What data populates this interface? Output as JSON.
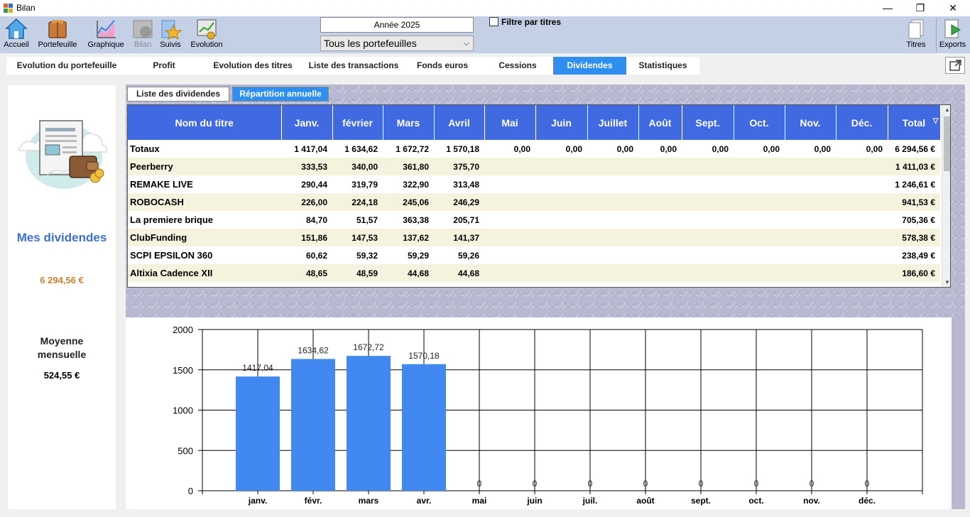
{
  "window": {
    "title": "Bilan",
    "minimize": "—",
    "maximize": "❐",
    "close": "✕"
  },
  "toolbar": {
    "buttons": [
      {
        "label": "Accueil",
        "icon": "home-icon",
        "enabled": true
      },
      {
        "label": "Portefeuille",
        "icon": "portfolio-icon",
        "enabled": true
      },
      {
        "label": "Graphique",
        "icon": "chart-icon",
        "enabled": true
      },
      {
        "label": "Bilan",
        "icon": "balance-icon",
        "enabled": false
      },
      {
        "label": "Suivis",
        "icon": "star-icon",
        "enabled": true
      },
      {
        "label": "Evolution",
        "icon": "evolution-icon",
        "enabled": true
      }
    ],
    "right_buttons": [
      {
        "label": "Titres",
        "icon": "documents-icon"
      },
      {
        "label": "Exports",
        "icon": "export-icon"
      }
    ]
  },
  "year_selector": "Année 2025",
  "portfolio_select": "Tous les portefeuilles",
  "filter_checkbox": {
    "label": "Filtre par titres",
    "checked": false
  },
  "tabs": [
    {
      "label": "Evolution du portefeuille",
      "active": false
    },
    {
      "label": "Profit",
      "active": false
    },
    {
      "label": "Evolution des titres",
      "active": false
    },
    {
      "label": "Liste des transactions",
      "active": false
    },
    {
      "label": "Fonds euros",
      "active": false
    },
    {
      "label": "Cessions",
      "active": false
    },
    {
      "label": "Dividendes",
      "active": true
    },
    {
      "label": "Statistiques",
      "active": false
    }
  ],
  "left_panel": {
    "title": "Mes dividendes",
    "total": "6 294,56 €",
    "moyenne_label_1": "Moyenne",
    "moyenne_label_2": "mensuelle",
    "moyenne_value": "524,55 €"
  },
  "subtabs": [
    {
      "label": "Liste des dividendes",
      "active": false
    },
    {
      "label": "Répartition annuelle",
      "active": true
    }
  ],
  "colors": {
    "header_blue": "#4169e1",
    "tab_active": "#2e8ff0",
    "bar_blue": "#4189f0",
    "row_alt": "#f5f3de",
    "amount_orange": "#c6822f"
  },
  "table": {
    "columns": [
      "Nom du titre",
      "Janv.",
      "février",
      "Mars",
      "Avril",
      "Mai",
      "Juin",
      "Juillet",
      "Août",
      "Sept.",
      "Oct.",
      "Nov.",
      "Déc.",
      "Total"
    ],
    "sort_indicator": "▽",
    "rows": [
      [
        "Totaux",
        "1 417,04",
        "1 634,62",
        "1 672,72",
        "1 570,18",
        "0,00",
        "0,00",
        "0,00",
        "0,00",
        "0,00",
        "0,00",
        "0,00",
        "0,00",
        "6 294,56 €"
      ],
      [
        "Peerberry",
        "333,53",
        "340,00",
        "361,80",
        "375,70",
        "",
        "",
        "",
        "",
        "",
        "",
        "",
        "",
        "1 411,03 €"
      ],
      [
        "REMAKE LIVE",
        "290,44",
        "319,79",
        "322,90",
        "313,48",
        "",
        "",
        "",
        "",
        "",
        "",
        "",
        "",
        "1 246,61 €"
      ],
      [
        "ROBOCASH",
        "226,00",
        "224,18",
        "245,06",
        "246,29",
        "",
        "",
        "",
        "",
        "",
        "",
        "",
        "",
        "941,53 €"
      ],
      [
        "La premiere brique",
        "84,70",
        "51,57",
        "363,38",
        "205,71",
        "",
        "",
        "",
        "",
        "",
        "",
        "",
        "",
        "705,36 €"
      ],
      [
        "ClubFunding",
        "151,86",
        "147,53",
        "137,62",
        "141,37",
        "",
        "",
        "",
        "",
        "",
        "",
        "",
        "",
        "578,38 €"
      ],
      [
        "SCPI EPSILON 360",
        "60,62",
        "59,32",
        "59,29",
        "59,26",
        "",
        "",
        "",
        "",
        "",
        "",
        "",
        "",
        "238,49 €"
      ],
      [
        "Altixia Cadence XII",
        "48,65",
        "48,59",
        "44,68",
        "44,68",
        "",
        "",
        "",
        "",
        "",
        "",
        "",
        "",
        "186,60 €"
      ]
    ]
  },
  "chart_data": {
    "type": "bar",
    "categories": [
      "janv.",
      "févr.",
      "mars",
      "avr.",
      "mai",
      "juin",
      "juil.",
      "août",
      "sept.",
      "oct.",
      "nov.",
      "déc."
    ],
    "values": [
      1417.04,
      1634.62,
      1672.72,
      1570.18,
      0,
      0,
      0,
      0,
      0,
      0,
      0,
      0
    ],
    "value_labels": [
      "1417,04",
      "1634,62",
      "1672,72",
      "1570,18",
      "0",
      "0",
      "0",
      "0",
      "0",
      "0",
      "0",
      "0"
    ],
    "y_ticks": [
      "0",
      "500",
      "1000",
      "1500",
      "2000"
    ],
    "ylim": [
      0,
      2000
    ],
    "title": "",
    "xlabel": "",
    "ylabel": "",
    "grid": true
  }
}
